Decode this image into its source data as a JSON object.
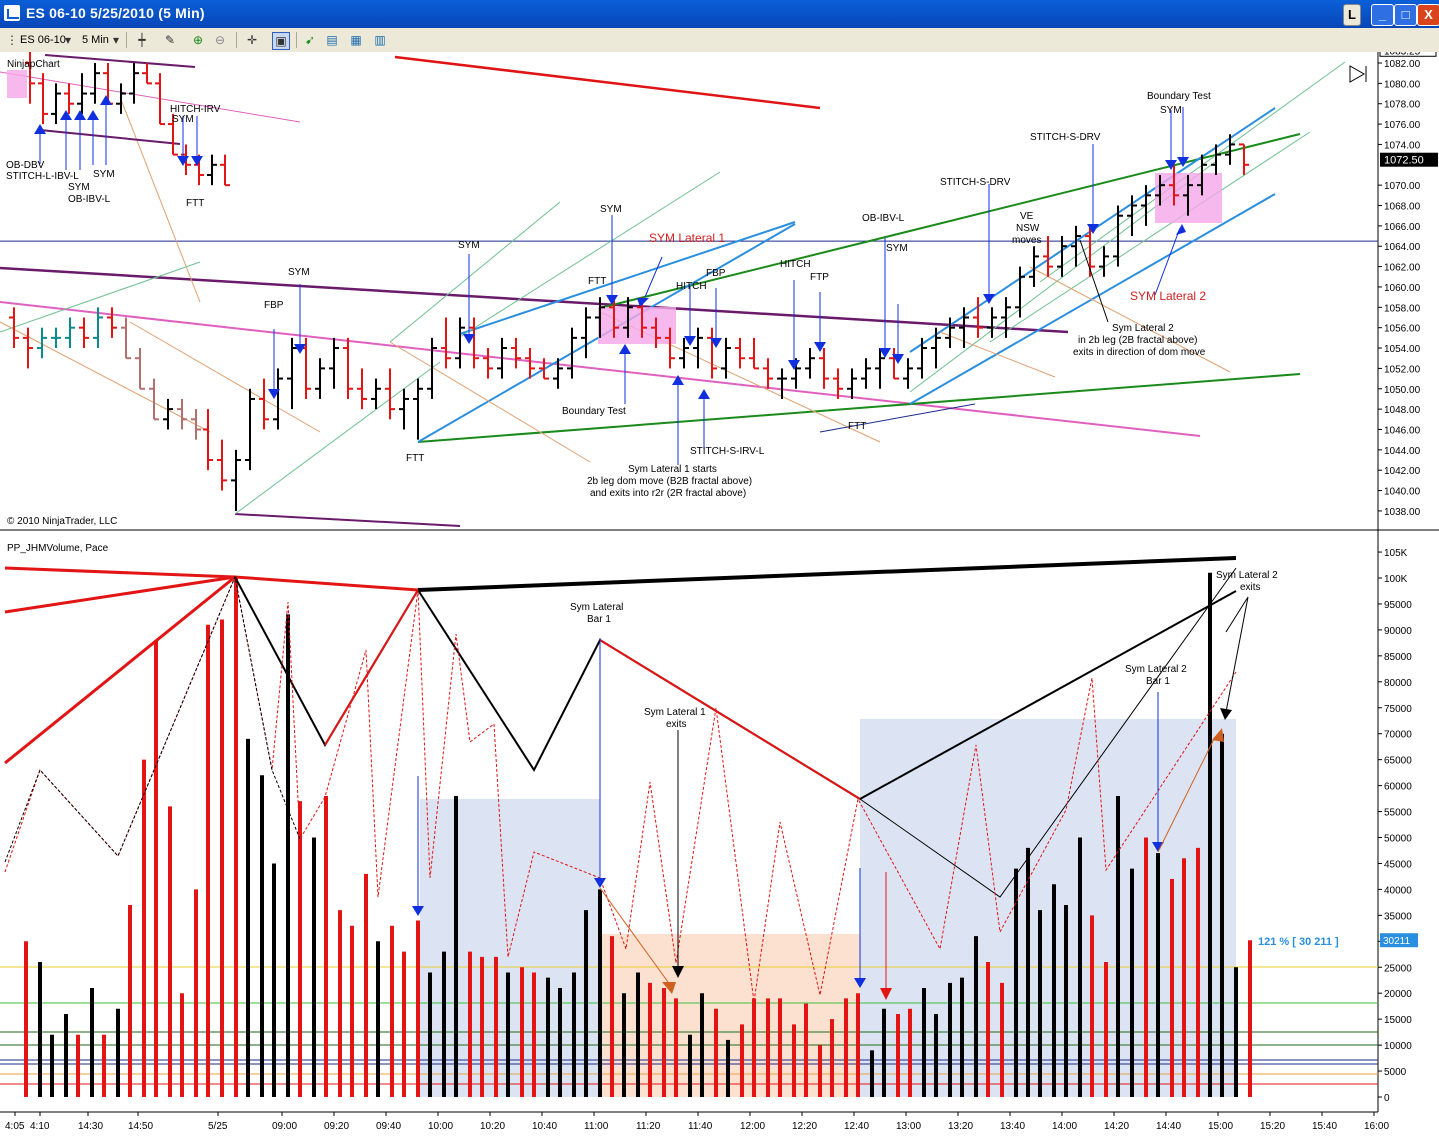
{
  "window": {
    "title": "ES 06-10  5/25/2010 (5 Min)",
    "buttons": {
      "layout": "L",
      "minimize": "_",
      "maximize": "□",
      "close": "X"
    }
  },
  "toolbar": {
    "instrument": "ES 06-10",
    "interval": "5 Min",
    "icons": [
      "bars-icon",
      "pencil-icon",
      "zoom-in-icon",
      "zoom-out-icon",
      "crosshair-icon",
      "properties-icon",
      "strategy-icon",
      "chart-style-icon",
      "data-box-icon"
    ]
  },
  "colors": {
    "bull": "#000000",
    "bear": "#e31414",
    "pink": "#e060c0",
    "blue": "#2b8fe0",
    "green": "#1a8a1a",
    "purple": "#6a1a6a",
    "orange": "#e0a070",
    "lightgreen": "#6fc090",
    "navy": "#1a2a8a",
    "arrow": "#1030e0"
  },
  "chart_data": [
    {
      "type": "ohlc",
      "title": "NinjapChart",
      "copyright": "© 2010 NinjaTrader, LLC",
      "instrument": "ES 06-10",
      "interval": "5 Min",
      "ylim": [
        1037,
        1084
      ],
      "price_axis_ticks": [
        "1083.25",
        "1082.00",
        "1080.00",
        "1078.00",
        "1076.00",
        "1074.00",
        "1072.50",
        "1070.00",
        "1068.00",
        "1066.00",
        "1064.00",
        "1062.00",
        "1060.00",
        "1058.00",
        "1056.00",
        "1054.00",
        "1052.00",
        "1050.00",
        "1048.00",
        "1046.00",
        "1044.00",
        "1042.00",
        "1040.00",
        "1038.00"
      ],
      "current_price": "1072.50",
      "horizontal_line": 1064.5,
      "bars": [
        {
          "t": 0,
          "o": 1082,
          "h": 1084,
          "l": 1078,
          "c": 1080
        },
        {
          "t": 1,
          "o": 1080,
          "h": 1081,
          "l": 1076,
          "c": 1077
        },
        {
          "t": 2,
          "o": 1077,
          "h": 1080,
          "l": 1076,
          "c": 1079
        },
        {
          "t": 3,
          "o": 1079,
          "h": 1080,
          "l": 1077,
          "c": 1078
        },
        {
          "t": 4,
          "o": 1078,
          "h": 1081,
          "l": 1077,
          "c": 1079
        },
        {
          "t": 5,
          "o": 1079,
          "h": 1082,
          "l": 1078,
          "c": 1081
        },
        {
          "t": 6,
          "o": 1081,
          "h": 1082,
          "l": 1078,
          "c": 1078
        },
        {
          "t": 7,
          "o": 1078,
          "h": 1080,
          "l": 1077,
          "c": 1079
        },
        {
          "t": 8,
          "o": 1079,
          "h": 1082,
          "l": 1078,
          "c": 1081
        },
        {
          "t": 9,
          "o": 1081,
          "h": 1082,
          "l": 1080,
          "c": 1080
        },
        {
          "t": 10,
          "o": 1080,
          "h": 1081,
          "l": 1076,
          "c": 1076
        },
        {
          "t": 11,
          "o": 1076,
          "h": 1077,
          "l": 1073,
          "c": 1073
        },
        {
          "t": 12,
          "o": 1073,
          "h": 1074,
          "l": 1071,
          "c": 1072
        },
        {
          "t": 13,
          "o": 1072,
          "h": 1073,
          "l": 1070,
          "c": 1071
        },
        {
          "t": 14,
          "o": 1071,
          "h": 1073,
          "l": 1070,
          "c": 1072
        },
        {
          "t": 15,
          "o": 1072,
          "h": 1073,
          "l": 1070,
          "c": 1070
        }
      ],
      "annotations": [
        "OB-DBV",
        "STITCH-L-IBV-L",
        "SYM",
        "OB-IBV-L",
        "SYM",
        "HITCH-IRV",
        "SYM",
        "FTT",
        "FBP",
        "SYM",
        "SYM",
        "FTT",
        "SYM",
        "FTT",
        "SYM Lateral 1",
        "Boundary Test",
        "HITCH",
        "FBP",
        "HITCH",
        "FTP",
        "STITCH-S-IRV-L",
        "Sym Lateral 1 starts",
        "2b leg dom move (B2B fractal above)",
        "and exits into r2r (2R fractal above)",
        "OB-IBV-L",
        "SYM",
        "FTT",
        "STITCH-S-DRV",
        "VE",
        "NSW",
        "moves",
        "STITCH-S-DRV",
        "Boundary Test",
        "SYM",
        "SYM Lateral 2",
        "Sym Lateral 2",
        "in 2b leg (2B fractal above)",
        "exits in direction of dom move"
      ]
    },
    {
      "type": "bar",
      "title": "PP_JHMVolume, Pace",
      "ylim": [
        0,
        105000
      ],
      "y_ticks": [
        "105K",
        "100K",
        "95000",
        "90000",
        "85000",
        "80000",
        "75000",
        "70000",
        "65000",
        "60000",
        "55000",
        "50000",
        "45000",
        "40000",
        "35000",
        "30000",
        "25000",
        "20000",
        "15000",
        "10000",
        "5000",
        "0"
      ],
      "last_value": "30211",
      "pace_label": "121 % [ 30 211 ]",
      "annotations": [
        "Sym Lateral",
        "Bar 1",
        "Sym Lateral 1",
        "exits",
        "Sym Lateral 2",
        "Bar 1",
        "Sym Lateral 2",
        "exits"
      ]
    }
  ],
  "time_axis": [
    "4:05",
    "4:10",
    "14:30",
    "14:50",
    "5/25",
    "09:00",
    "09:20",
    "09:40",
    "10:00",
    "10:20",
    "10:40",
    "11:00",
    "11:20",
    "11:40",
    "12:00",
    "12:20",
    "12:40",
    "13:00",
    "13:20",
    "13:40",
    "14:00",
    "14:20",
    "14:40",
    "15:00",
    "15:20",
    "15:40",
    "16:00"
  ]
}
